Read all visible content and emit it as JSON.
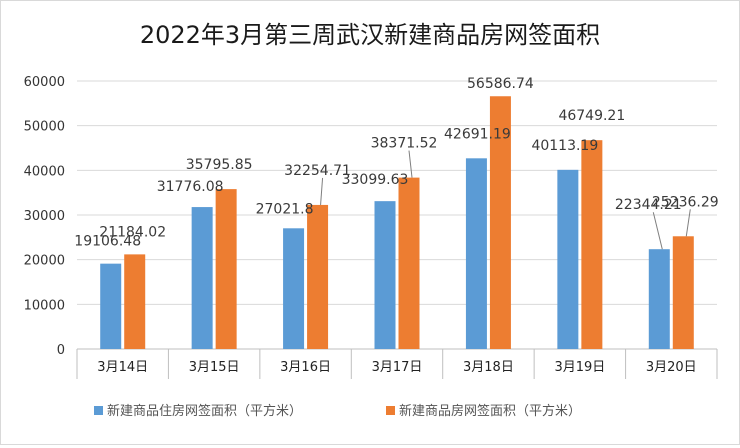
{
  "chart_data": {
    "type": "bar",
    "title": "2022年3月第三周武汉新建商品房网签面积",
    "categories": [
      "3月14日",
      "3月15日",
      "3月16日",
      "3月17日",
      "3月18日",
      "3月19日",
      "3月20日"
    ],
    "series": [
      {
        "name": "新建商品住房网签面积（平方米）",
        "color": "#5b9bd5",
        "values": [
          19106.48,
          31776.08,
          27021.8,
          33099.63,
          42691.19,
          40113.19,
          22344.21
        ],
        "labels": [
          "19106.48",
          "31776.08",
          "27021.8",
          "33099.63",
          "42691.19",
          "40113.19",
          "22344.21"
        ]
      },
      {
        "name": "新建商品房网签面积（平方米）",
        "color": "#ed7d31",
        "values": [
          21184.02,
          35795.85,
          32254.71,
          38371.52,
          56586.74,
          46749.21,
          25236.29
        ],
        "labels": [
          "21184.02",
          "35795.85",
          "32254.71",
          "38371.52",
          "56586.74",
          "46749.21",
          "25236.29"
        ]
      }
    ],
    "ylim": [
      0,
      60000
    ],
    "yticks": [
      "0",
      "10000",
      "20000",
      "30000",
      "40000",
      "50000",
      "60000"
    ],
    "grid": true,
    "legend": "bottom"
  }
}
